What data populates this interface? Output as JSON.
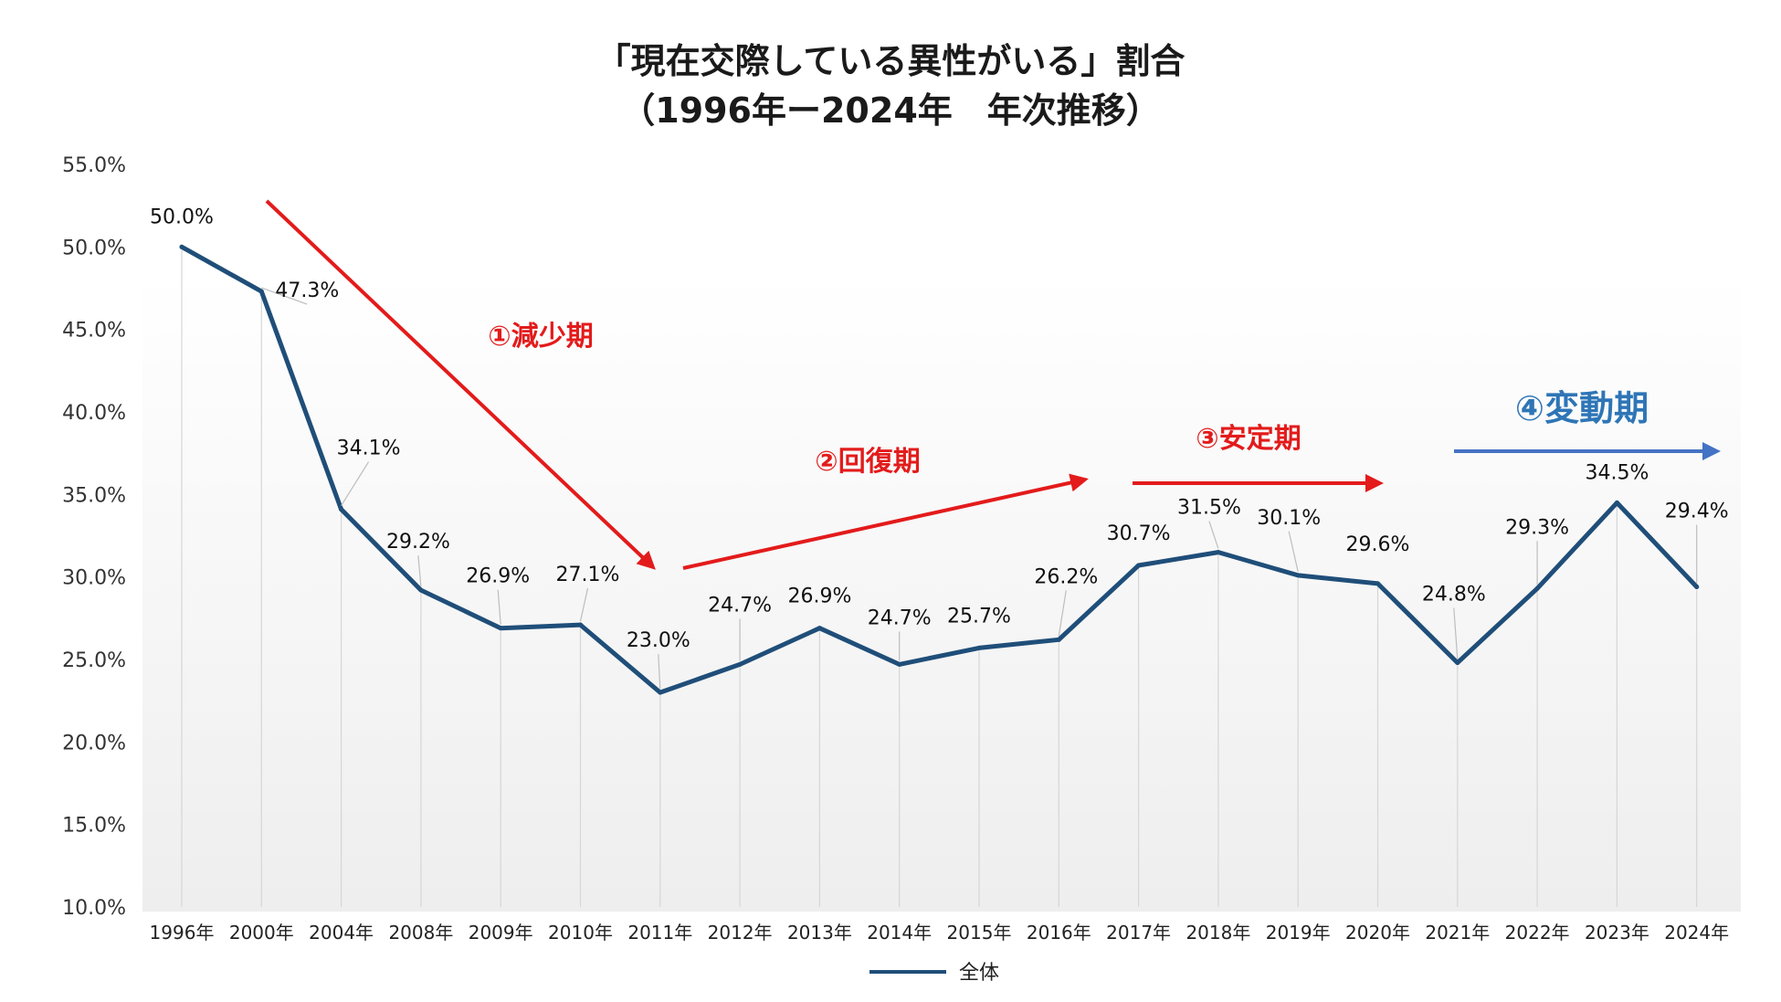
{
  "title_line1": "「現在交際している異性がいる」割合",
  "title_line2": "（1996年ー2024年　年次推移）",
  "chart_data": {
    "type": "line",
    "title": "「現在交際している異性がいる」割合（1996年ー2024年　年次推移）",
    "xlabel": "",
    "ylabel": "",
    "categories": [
      "1996年",
      "2000年",
      "2004年",
      "2008年",
      "2009年",
      "2010年",
      "2011年",
      "2012年",
      "2013年",
      "2014年",
      "2015年",
      "2016年",
      "2017年",
      "2018年",
      "2019年",
      "2020年",
      "2021年",
      "2022年",
      "2023年",
      "2024年"
    ],
    "series": [
      {
        "name": "全体",
        "values": [
          50.0,
          47.3,
          34.1,
          29.2,
          26.9,
          27.1,
          23.0,
          24.7,
          26.9,
          24.7,
          25.7,
          26.2,
          30.7,
          31.5,
          30.1,
          29.6,
          24.8,
          29.3,
          34.5,
          29.4
        ],
        "labels": [
          "50.0%",
          "47.3%",
          "34.1%",
          "29.2%",
          "26.9%",
          "27.1%",
          "23.0%",
          "24.7%",
          "26.9%",
          "24.7%",
          "25.7%",
          "26.2%",
          "30.7%",
          "31.5%",
          "30.1%",
          "29.6%",
          "24.8%",
          "29.3%",
          "34.5%",
          "29.4%"
        ],
        "color": "#1f4e79"
      }
    ],
    "ylim": [
      10.0,
      55.0
    ],
    "yticks": [
      "10.0%",
      "15.0%",
      "20.0%",
      "25.0%",
      "30.0%",
      "35.0%",
      "40.0%",
      "45.0%",
      "50.0%",
      "55.0%"
    ],
    "ytick_values": [
      10,
      15,
      20,
      25,
      30,
      35,
      40,
      45,
      50,
      55
    ],
    "legend": {
      "position": "bottom",
      "label": "全体"
    },
    "annotations": [
      {
        "text": "①減少期",
        "color": "#e31b1b"
      },
      {
        "text": "②回復期",
        "color": "#e31b1b"
      },
      {
        "text": "③安定期",
        "color": "#e31b1b"
      },
      {
        "text": "④変動期",
        "color": "#2e75b6"
      }
    ]
  }
}
